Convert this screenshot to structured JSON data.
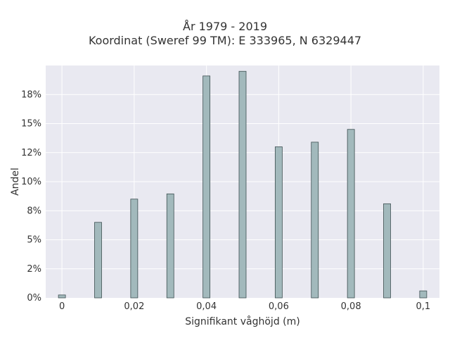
{
  "chart_data": {
    "type": "bar",
    "title_lines": [
      "År 1979 - 2019",
      "Koordinat (Sweref 99 TM): E 333965, N 6329447"
    ],
    "xlabel": "Signifikant våghöjd (m)",
    "ylabel": "Andel",
    "x": [
      0,
      0.01,
      0.02,
      0.03,
      0.04,
      0.05,
      0.06,
      0.07,
      0.08,
      0.09,
      0.1
    ],
    "values": [
      0.25,
      6.5,
      8.5,
      8.95,
      19.1,
      19.5,
      13.0,
      13.4,
      14.5,
      8.1,
      0.6
    ],
    "xlim": [
      -0.0045,
      0.1045
    ],
    "ylim": [
      0,
      20
    ],
    "x_ticks": [
      0,
      0.02,
      0.04,
      0.06,
      0.08,
      0.1
    ],
    "x_tick_labels": [
      "0",
      "0,02",
      "0,04",
      "0,06",
      "0,08",
      "0,1"
    ],
    "y_ticks": [
      0,
      2.5,
      5,
      7.5,
      10,
      12.5,
      15,
      17.5
    ],
    "y_tick_labels": [
      "0%",
      "2%",
      "5%",
      "8%",
      "10%",
      "12%",
      "15%",
      "18%"
    ],
    "grid": true,
    "colors": {
      "bar_fill": "#a2b9bc",
      "bar_stroke": "#3d4f51",
      "plot_bg": "#e9e9f1",
      "grid": "#ffffff"
    }
  }
}
